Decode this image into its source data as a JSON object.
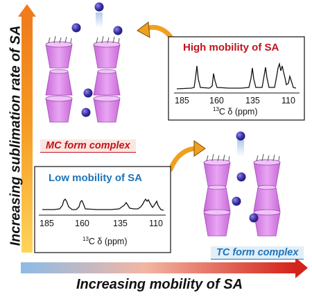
{
  "axes": {
    "y_label": "Increasing sublimation rate of SA",
    "x_label": "Increasing mobility of SA"
  },
  "spectra": {
    "high": {
      "title": "High mobility of SA",
      "title_color": "#c0141b",
      "ticks": [
        "185",
        "160",
        "135",
        "110"
      ],
      "axis_title_pre": "13",
      "axis_title_post": "C δ (ppm)"
    },
    "low": {
      "title": "Low mobility of SA",
      "title_color": "#1f74b8",
      "ticks": [
        "185",
        "160",
        "135",
        "110"
      ],
      "axis_title_pre": "13",
      "axis_title_post": "C δ (ppm)"
    }
  },
  "forms": {
    "mc": {
      "label": "MC form complex",
      "color": "#c0141b",
      "bg": "#fbe6e0"
    },
    "tc": {
      "label": "TC form complex",
      "color": "#1f74b8",
      "bg": "#e2eef8"
    }
  },
  "colors": {
    "cyclodextrin": "#d87fe8",
    "molecule": "#3a2ea6",
    "arrow": "#f0a020"
  }
}
